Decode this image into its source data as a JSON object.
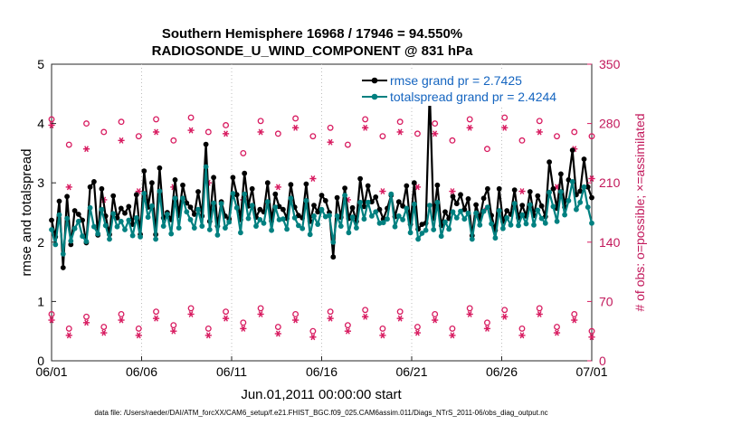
{
  "chart_data": {
    "type": "line",
    "title_line1": "Southern Hemisphere 16968 / 17946 = 94.550%",
    "title_line2": "RADIOSONDE_U_WIND_COMPONENT @ 831 hPa",
    "xlabel": "Jun.01,2011 00:00:00 start",
    "ylabel_left": "rmse and totalspread",
    "ylabel_right": "# of obs: o=possible; ×=assimilated",
    "ylim_left": [
      0,
      5
    ],
    "ylim_right": [
      0,
      350
    ],
    "xlim_days": [
      0,
      30
    ],
    "x_tick_labels": [
      "06/01",
      "06/06",
      "06/11",
      "06/16",
      "06/21",
      "06/26",
      "07/01"
    ],
    "x_tick_days": [
      0,
      5,
      10,
      15,
      20,
      25,
      30
    ],
    "y_left_ticks": [
      "0",
      "1",
      "2",
      "3",
      "4",
      "5"
    ],
    "y_right_ticks": [
      "0",
      "70",
      "140",
      "210",
      "280",
      "350"
    ],
    "footer": "data file: /Users/raeder/DAI/ATM_forcXX/CAM6_setup/f.e21.FHIST_BGC.f09_025.CAM6assim.011/Diags_NTrS_2011-06/obs_diag_output.nc",
    "colors": {
      "rmse": "#000000",
      "spread": "#008080",
      "obs": "#d81b60",
      "legend_text": "#1565c0"
    },
    "series": [
      {
        "name": "rmse grand pr = 2.7425",
        "values": [
          2.37,
          2.09,
          2.69,
          1.57,
          2.77,
          1.96,
          2.53,
          2.47,
          2.37,
          1.99,
          2.93,
          3.02,
          2.12,
          2.9,
          2.44,
          2.13,
          2.78,
          2.41,
          2.57,
          2.49,
          2.6,
          2.3,
          2.8,
          2.13,
          3.2,
          2.59,
          3.0,
          2.13,
          3.25,
          2.41,
          2.5,
          2.38,
          3.05,
          2.45,
          2.96,
          2.66,
          2.59,
          2.47,
          2.85,
          2.44,
          3.65,
          2.35,
          3.09,
          2.27,
          2.68,
          2.44,
          2.39,
          3.09,
          2.8,
          2.38,
          3.16,
          2.61,
          2.9,
          2.42,
          2.55,
          2.51,
          3.0,
          2.36,
          2.81,
          2.6,
          2.55,
          2.4,
          2.97,
          2.59,
          2.45,
          2.41,
          2.98,
          2.35,
          2.62,
          2.51,
          2.79,
          2.7,
          2.5,
          1.75,
          2.75,
          2.42,
          2.91,
          2.4,
          2.58,
          2.35,
          3.07,
          2.6,
          2.95,
          2.68,
          2.76,
          2.55,
          2.39,
          2.57,
          2.79,
          2.43,
          2.68,
          2.61,
          2.95,
          2.3,
          3.0,
          2.22,
          2.3,
          2.32,
          4.55,
          2.4,
          2.96,
          2.28,
          2.51,
          2.4,
          2.77,
          2.65,
          2.8,
          2.55,
          2.73,
          2.11,
          2.63,
          2.4,
          2.74,
          2.9,
          2.45,
          2.2,
          2.9,
          2.35,
          2.53,
          2.47,
          2.88,
          2.41,
          2.62,
          2.44,
          2.85,
          2.45,
          2.78,
          2.61,
          2.43,
          3.35,
          2.9,
          2.57,
          3.15,
          2.59,
          3.05,
          3.55,
          2.8,
          2.86,
          3.4,
          2.93,
          2.75
        ]
      },
      {
        "name": "totalspread grand pr = 2.4244",
        "values": [
          2.21,
          1.96,
          2.46,
          1.8,
          2.4,
          2.02,
          2.23,
          2.35,
          2.1,
          2.01,
          2.58,
          2.26,
          2.14,
          2.55,
          2.28,
          2.05,
          2.48,
          2.26,
          2.35,
          2.21,
          2.37,
          2.11,
          2.41,
          2.09,
          2.82,
          2.42,
          2.61,
          2.05,
          2.86,
          2.27,
          2.47,
          2.14,
          2.74,
          2.24,
          2.74,
          2.51,
          2.38,
          2.24,
          2.55,
          2.27,
          3.27,
          2.21,
          2.66,
          2.12,
          2.65,
          2.24,
          2.34,
          2.82,
          2.58,
          2.16,
          2.81,
          2.4,
          2.62,
          2.27,
          2.38,
          2.32,
          2.68,
          2.2,
          2.59,
          2.38,
          2.39,
          2.22,
          2.74,
          2.41,
          2.28,
          2.23,
          2.7,
          2.13,
          2.44,
          2.3,
          2.55,
          2.43,
          2.45,
          2.0,
          2.44,
          2.27,
          2.79,
          2.16,
          2.42,
          2.24,
          2.67,
          2.39,
          2.67,
          2.44,
          2.51,
          2.32,
          2.33,
          2.39,
          2.81,
          2.26,
          2.44,
          2.38,
          2.57,
          2.16,
          2.64,
          2.05,
          2.15,
          2.2,
          2.62,
          2.21,
          2.67,
          2.1,
          2.34,
          2.22,
          2.51,
          2.41,
          2.52,
          2.39,
          2.49,
          2.05,
          2.49,
          2.29,
          2.52,
          2.59,
          2.31,
          2.07,
          2.53,
          2.23,
          2.41,
          2.29,
          2.65,
          2.28,
          2.46,
          2.31,
          2.63,
          2.29,
          2.54,
          2.4,
          2.32,
          2.84,
          2.6,
          2.35,
          2.85,
          2.46,
          2.7,
          3.02,
          2.55,
          2.67,
          2.93,
          2.59,
          2.32
        ]
      }
    ],
    "obs_possible_high": [
      285,
      255,
      280,
      270,
      282,
      265,
      285,
      260,
      287,
      270,
      278,
      245,
      283,
      268,
      286,
      265,
      275,
      255,
      285,
      265,
      282,
      268,
      280,
      260,
      285,
      250,
      287,
      260,
      283,
      265,
      270,
      265
    ],
    "obs_assimilated_high": [
      278,
      205,
      250,
      190,
      260,
      200,
      270,
      205,
      272,
      210,
      268,
      190,
      270,
      205,
      275,
      215,
      258,
      190,
      275,
      200,
      270,
      205,
      268,
      200,
      275,
      180,
      275,
      200,
      270,
      205,
      250,
      215
    ],
    "obs_possible_low": [
      55,
      38,
      52,
      40,
      55,
      38,
      58,
      42,
      62,
      38,
      58,
      45,
      62,
      40,
      55,
      35,
      58,
      42,
      60,
      38,
      58,
      40,
      55,
      38,
      62,
      45,
      60,
      38,
      62,
      40,
      55,
      35
    ],
    "obs_assimilated_low": [
      48,
      30,
      45,
      33,
      48,
      30,
      50,
      35,
      55,
      30,
      50,
      38,
      55,
      32,
      48,
      28,
      50,
      35,
      52,
      30,
      50,
      33,
      48,
      30,
      55,
      38,
      52,
      30,
      55,
      33,
      48,
      28
    ]
  }
}
